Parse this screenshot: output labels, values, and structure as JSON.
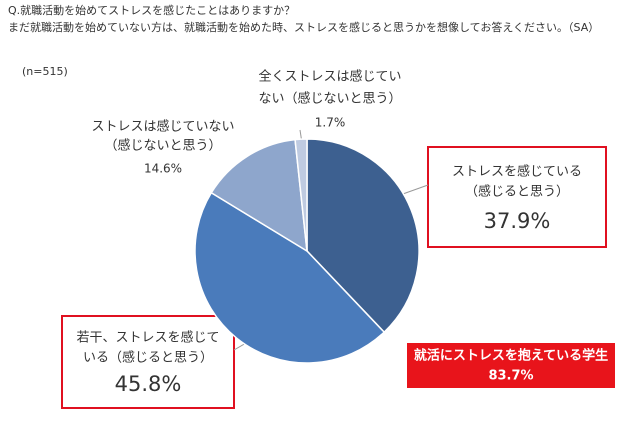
{
  "chart_data": {
    "type": "pie",
    "title": "Q.就職活動を始めてストレスを感じたことはありますか？",
    "subtitle": "まだ就職活動を始めていない方は、就職活動を始めた時、ストレスを感じると思うかを想像してお答えください。（SA）",
    "note": "(n=515)",
    "categories": [
      [
        "ストレスを感じている",
        "（感じると思う）"
      ],
      [
        "若干、ストレスを感じて",
        "いる（感じると思う）"
      ],
      [
        "ストレスは感じていない",
        "（感じないと思う）"
      ],
      [
        "全くストレスは感じてい",
        "ない（感じないと思う）"
      ]
    ],
    "values": [
      37.9,
      45.8,
      14.6,
      1.7
    ],
    "value_labels": [
      "37.9%",
      "45.8%",
      "14.6%",
      "1.7%"
    ],
    "colors": [
      "#3d6090",
      "#4a7bbb",
      "#8ea6cc",
      "#bfcbe1"
    ],
    "annotation": [
      "就活にストレスを抱えている学生",
      "83.7%"
    ]
  }
}
